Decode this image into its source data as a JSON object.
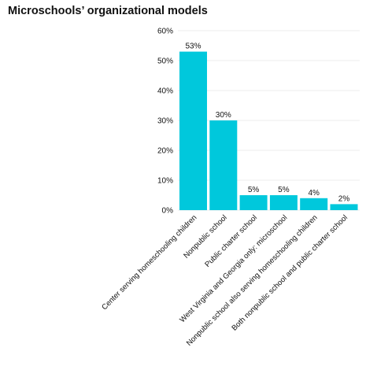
{
  "chart_data": {
    "type": "bar",
    "title": "Microschools’ organizational models",
    "xlabel": "",
    "ylabel": "",
    "ylim": [
      0,
      60
    ],
    "yticks": [
      0,
      10,
      20,
      30,
      40,
      50,
      60
    ],
    "ytick_labels": [
      "0%",
      "10%",
      "20%",
      "30%",
      "40%",
      "50%",
      "60%"
    ],
    "grid": true,
    "categories": [
      "Center serving homeschooling children",
      "Nonpublic school",
      "Public charter school",
      "West Virginia and Georgia only: microschool",
      "Nonpublic school also serving homeschooling children",
      "Both nonpublic school and public charter school"
    ],
    "values": [
      53,
      30,
      5,
      5,
      4,
      2
    ],
    "data_labels": [
      "53%",
      "30%",
      "5%",
      "5%",
      "4%",
      "2%"
    ],
    "colors": {
      "bar": "#00c8dc",
      "grid": "#eeeeee",
      "text": "#111111"
    }
  }
}
